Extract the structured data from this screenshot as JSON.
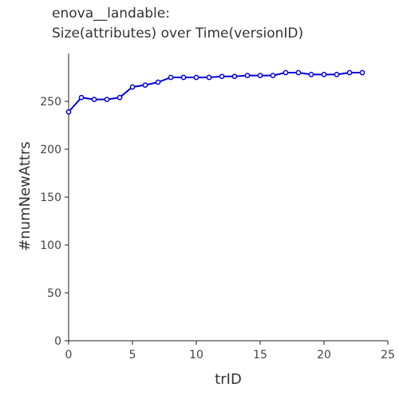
{
  "chart_data": {
    "type": "line",
    "title": [
      "enova__landable:",
      "Size(attributes) over Time(versionID)"
    ],
    "xlabel": "trID",
    "ylabel": "#numNewAttrs",
    "xlim": [
      0,
      25
    ],
    "ylim": [
      0,
      300
    ],
    "xticks": [
      0,
      5,
      10,
      15,
      20,
      25
    ],
    "yticks": [
      0,
      50,
      100,
      150,
      200,
      250
    ],
    "grid": false,
    "series": [
      {
        "color": "#0000dd",
        "marker": "circle",
        "x": [
          0,
          1,
          2,
          3,
          4,
          5,
          6,
          7,
          8,
          9,
          10,
          11,
          12,
          13,
          14,
          15,
          16,
          17,
          18,
          19,
          20,
          21,
          22,
          23
        ],
        "values": [
          239,
          254,
          252,
          252,
          254,
          265,
          267,
          270,
          275,
          275,
          275,
          275,
          276,
          276,
          277,
          277,
          277,
          280,
          280,
          278,
          278,
          278,
          280,
          280
        ]
      }
    ]
  }
}
